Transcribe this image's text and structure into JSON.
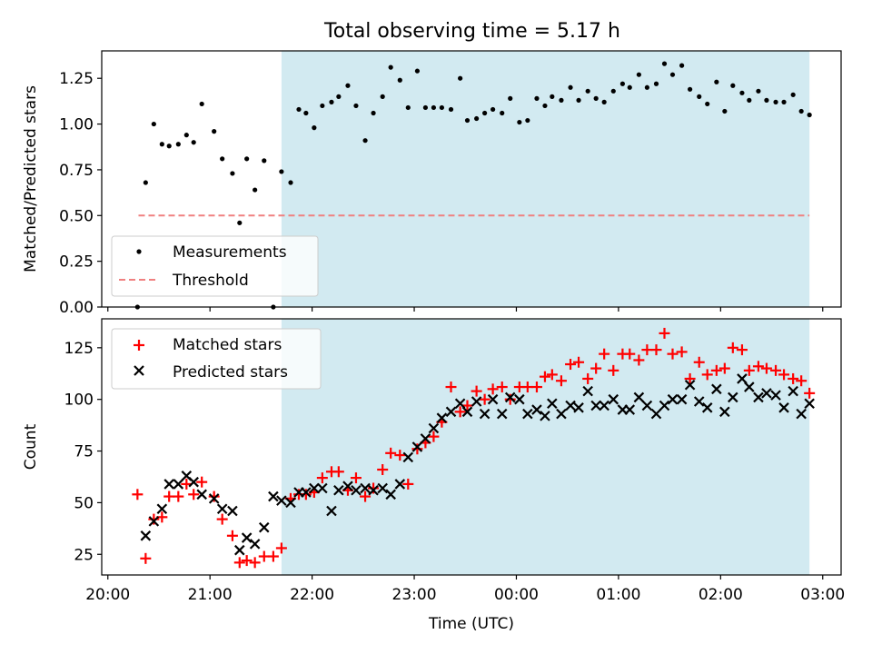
{
  "title": "Total observing time = 5.17 h",
  "colors": {
    "shade": "#add8e6",
    "matched": "#ff0000",
    "predicted": "#000000",
    "threshold": "#f08080",
    "measurement": "#000000"
  },
  "chart_data": [
    {
      "type": "scatter",
      "ylabel": "Matched/Predicted stars",
      "ylim": [
        0,
        1.4
      ],
      "yticks": [
        0.0,
        0.25,
        0.5,
        0.75,
        1.0,
        1.25
      ],
      "ytick_labels": [
        "0.00",
        "0.25",
        "0.50",
        "0.75",
        "1.00",
        "1.25"
      ],
      "xlim_hours": [
        19.94,
        27.18
      ],
      "shaded_interval_hours": [
        21.7,
        26.87
      ],
      "threshold": {
        "y": 0.5,
        "x_range_hours": [
          20.3,
          26.87
        ]
      },
      "legend": {
        "location": "lower-left",
        "entries": [
          "Measurements",
          "Threshold"
        ]
      },
      "series": [
        {
          "name": "Measurements",
          "x_hours": [
            20.29,
            20.37,
            20.45,
            20.53,
            20.6,
            20.69,
            20.77,
            20.84,
            20.92,
            21.04,
            21.12,
            21.22,
            21.29,
            21.36,
            21.44,
            21.53,
            21.62,
            21.7,
            21.79,
            21.87,
            21.94,
            22.02,
            22.1,
            22.19,
            22.26,
            22.35,
            22.43,
            22.52,
            22.6,
            22.69,
            22.77,
            22.86,
            22.94,
            23.03,
            23.11,
            23.19,
            23.27,
            23.36,
            23.45,
            23.52,
            23.61,
            23.69,
            23.77,
            23.86,
            23.94,
            24.03,
            24.11,
            24.2,
            24.28,
            24.35,
            24.44,
            24.53,
            24.61,
            24.7,
            24.78,
            24.86,
            24.95,
            25.04,
            25.11,
            25.2,
            25.28,
            25.37,
            25.45,
            25.53,
            25.62,
            25.7,
            25.79,
            25.87,
            25.96,
            26.04,
            26.12,
            26.21,
            26.28,
            26.37,
            26.45,
            26.54,
            26.62,
            26.71,
            26.79,
            26.87
          ],
          "y": [
            0.0,
            0.68,
            1.0,
            0.89,
            0.88,
            0.89,
            0.94,
            0.9,
            1.11,
            0.96,
            0.81,
            0.73,
            0.46,
            0.81,
            0.64,
            0.8,
            0.0,
            0.74,
            0.68,
            1.08,
            1.06,
            0.98,
            1.1,
            1.12,
            1.15,
            1.21,
            1.1,
            0.91,
            1.06,
            1.15,
            1.31,
            1.24,
            1.09,
            1.29,
            1.09,
            1.09,
            1.09,
            1.08,
            1.25,
            1.02,
            1.03,
            1.06,
            1.08,
            1.06,
            1.14,
            1.01,
            1.02,
            1.14,
            1.1,
            1.15,
            1.13,
            1.2,
            1.13,
            1.18,
            1.14,
            1.12,
            1.18,
            1.22,
            1.2,
            1.27,
            1.2,
            1.22,
            1.33,
            1.27,
            1.32,
            1.19,
            1.15,
            1.11,
            1.23,
            1.07,
            1.21,
            1.17,
            1.13,
            1.18,
            1.13,
            1.12,
            1.12,
            1.16,
            1.07,
            1.05
          ]
        }
      ]
    },
    {
      "type": "scatter",
      "xlabel": "Time (UTC)",
      "ylabel": "Count",
      "ylim": [
        15,
        139
      ],
      "yticks": [
        25,
        50,
        75,
        100,
        125
      ],
      "ytick_labels": [
        "25",
        "50",
        "75",
        "100",
        "125"
      ],
      "xlim_hours": [
        19.94,
        27.18
      ],
      "xticks_hours": [
        20,
        21,
        22,
        23,
        24,
        25,
        26,
        27
      ],
      "xtick_labels": [
        "20:00",
        "21:00",
        "22:00",
        "23:00",
        "00:00",
        "01:00",
        "02:00",
        "03:00"
      ],
      "shaded_interval_hours": [
        21.7,
        26.87
      ],
      "legend": {
        "location": "upper-left",
        "entries": [
          "Matched stars",
          "Predicted stars"
        ]
      },
      "series": [
        {
          "name": "Matched stars",
          "marker": "plus",
          "x_hours": [
            20.29,
            20.37,
            20.45,
            20.53,
            20.6,
            20.69,
            20.77,
            20.84,
            20.92,
            21.04,
            21.12,
            21.22,
            21.29,
            21.36,
            21.44,
            21.53,
            21.62,
            21.7,
            21.79,
            21.87,
            21.94,
            22.02,
            22.1,
            22.19,
            22.26,
            22.35,
            22.43,
            22.52,
            22.6,
            22.69,
            22.77,
            22.86,
            22.94,
            23.03,
            23.11,
            23.19,
            23.27,
            23.36,
            23.45,
            23.52,
            23.61,
            23.69,
            23.77,
            23.86,
            23.94,
            24.03,
            24.11,
            24.2,
            24.28,
            24.35,
            24.44,
            24.53,
            24.61,
            24.7,
            24.78,
            24.86,
            24.95,
            25.04,
            25.11,
            25.2,
            25.28,
            25.37,
            25.45,
            25.53,
            25.62,
            25.7,
            25.79,
            25.87,
            25.96,
            26.04,
            26.12,
            26.21,
            26.28,
            26.37,
            26.45,
            26.54,
            26.62,
            26.71,
            26.79,
            26.87
          ],
          "y": [
            54,
            23,
            42,
            43,
            53,
            53,
            59,
            54,
            60,
            53,
            42,
            34,
            21,
            22,
            21,
            24,
            24,
            28,
            52,
            54,
            54,
            55,
            62,
            65,
            65,
            56,
            62,
            53,
            57,
            66,
            74,
            73,
            59,
            76,
            79,
            82,
            89,
            106,
            94,
            97,
            104,
            100,
            105,
            106,
            100,
            106,
            106,
            106,
            111,
            112,
            109,
            117,
            118,
            110,
            115,
            122,
            114,
            122,
            122,
            119,
            124,
            124,
            132,
            122,
            123,
            110,
            118,
            112,
            114,
            115,
            125,
            124,
            114,
            116,
            115,
            114,
            112,
            110,
            109,
            103
          ]
        },
        {
          "name": "Predicted stars",
          "marker": "cross",
          "x_hours": [
            20.37,
            20.45,
            20.53,
            20.6,
            20.69,
            20.77,
            20.84,
            20.92,
            21.04,
            21.12,
            21.22,
            21.29,
            21.36,
            21.44,
            21.53,
            21.62,
            21.7,
            21.79,
            21.87,
            21.94,
            22.02,
            22.1,
            22.19,
            22.26,
            22.35,
            22.43,
            22.52,
            22.6,
            22.69,
            22.77,
            22.86,
            22.94,
            23.03,
            23.11,
            23.19,
            23.27,
            23.36,
            23.45,
            23.52,
            23.61,
            23.69,
            23.77,
            23.86,
            23.94,
            24.03,
            24.11,
            24.2,
            24.28,
            24.35,
            24.44,
            24.53,
            24.61,
            24.7,
            24.78,
            24.86,
            24.95,
            25.04,
            25.11,
            25.2,
            25.28,
            25.37,
            25.45,
            25.53,
            25.62,
            25.7,
            25.79,
            25.87,
            25.96,
            26.04,
            26.12,
            26.21,
            26.28,
            26.37,
            26.45,
            26.54,
            26.62,
            26.71,
            26.79,
            26.87
          ],
          "y": [
            34,
            41,
            47,
            59,
            59,
            63,
            60,
            54,
            52,
            47,
            46,
            27,
            33,
            30,
            38,
            53,
            51,
            50,
            55,
            55,
            57,
            57,
            46,
            56,
            58,
            56,
            57,
            56,
            57,
            54,
            59,
            72,
            77,
            81,
            86,
            91,
            94,
            98,
            94,
            99,
            93,
            100,
            93,
            101,
            100,
            93,
            95,
            92,
            98,
            93,
            97,
            96,
            104,
            97,
            97,
            100,
            95,
            95,
            101,
            97,
            93,
            97,
            100,
            100,
            107,
            99,
            96,
            105,
            94,
            101,
            110,
            106,
            101,
            103,
            102,
            96,
            104,
            93,
            98
          ]
        }
      ]
    }
  ]
}
